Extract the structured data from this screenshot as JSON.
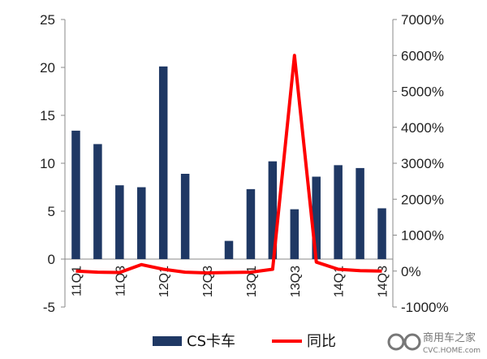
{
  "chart_data": {
    "type": "bar+line",
    "categories": [
      "11Q1",
      "11Q2",
      "11Q3",
      "11Q4",
      "12Q1",
      "12Q2",
      "12Q3",
      "12Q4",
      "13Q1",
      "13Q2",
      "13Q3",
      "13Q4",
      "14Q1",
      "14Q2",
      "14Q3"
    ],
    "tick_labels": [
      "11Q1",
      "11Q3",
      "12Q1",
      "12Q3",
      "13Q1",
      "13Q3",
      "14Q1",
      "14Q3"
    ],
    "series": [
      {
        "name": "CS卡车",
        "type": "bar",
        "axis": "left",
        "color": "#1f3864",
        "values": [
          13.4,
          12.0,
          7.7,
          7.5,
          20.1,
          8.9,
          0.0,
          1.9,
          7.3,
          10.2,
          5.2,
          8.6,
          9.8,
          9.5,
          5.3
        ]
      },
      {
        "name": "同比",
        "type": "line",
        "axis": "right",
        "color": "#ff0000",
        "values": [
          0,
          -30,
          -40,
          180,
          50,
          -30,
          -50,
          -40,
          -30,
          50,
          6000,
          250,
          50,
          10,
          0
        ]
      }
    ],
    "y_left": {
      "min": -5,
      "max": 25,
      "step": 5,
      "tick_labels": [
        "-5",
        "0",
        "5",
        "10",
        "15",
        "20",
        "25"
      ]
    },
    "y_right": {
      "min": -1000,
      "max": 7000,
      "step": 1000,
      "tick_labels": [
        "-1000%",
        "0%",
        "1000%",
        "2000%",
        "3000%",
        "4000%",
        "5000%",
        "6000%",
        "7000%"
      ]
    },
    "legend": {
      "position": "bottom"
    }
  },
  "watermark": {
    "line1": "商用车之家",
    "line2": "CVC.HOME.com"
  }
}
